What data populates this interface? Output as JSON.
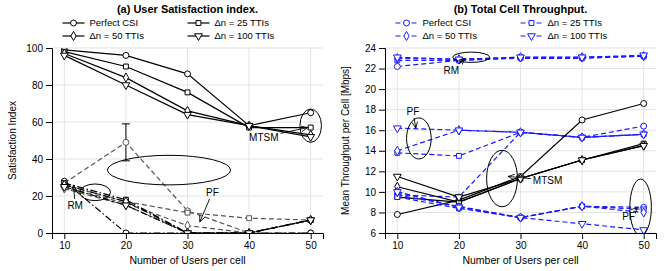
{
  "chart_data": [
    {
      "type": "line",
      "title": "(a) User Satisfaction index.",
      "x_label": "Number of Users per cell",
      "y_label": "Satisfaction Index",
      "x": [
        10,
        20,
        30,
        40,
        50
      ],
      "xlim": [
        8,
        52
      ],
      "xticks": [
        10,
        20,
        30,
        40,
        50
      ],
      "ylim": [
        0,
        100
      ],
      "yticks": [
        0,
        20,
        40,
        60,
        80,
        100
      ],
      "grid": true,
      "legend": "top",
      "series": [
        {
          "name": "Perfect CSI",
          "color": "#000000",
          "marker": "circle",
          "line_style": "solid",
          "values": [
            99,
            96,
            86,
            58,
            65
          ]
        },
        {
          "name": "Δn = 25 TTIs",
          "color": "#000000",
          "marker": "square",
          "line_style": "solid",
          "values": [
            98,
            90,
            76,
            57,
            57
          ]
        },
        {
          "name": "Δn = 50 TTIs",
          "color": "#000000",
          "marker": "diamond",
          "line_style": "solid",
          "values": [
            97,
            84,
            66,
            58,
            53
          ]
        },
        {
          "name": "Δn = 100 TTIs",
          "color": "#000000",
          "marker": "triangle-down",
          "line_style": "solid",
          "values": [
            96,
            80,
            64,
            58,
            52
          ]
        },
        {
          "name": "Perfect CSI",
          "color": "#555555",
          "marker": "circle",
          "line_style": "dashed",
          "values": [
            27,
            49,
            12,
            0,
            0
          ],
          "errors": [
            null,
            10,
            null,
            null,
            null
          ]
        },
        {
          "name": "Δn = 25 TTIs",
          "color": "#555555",
          "marker": "square",
          "line_style": "dashed",
          "values": [
            26,
            17,
            11,
            8,
            7
          ]
        },
        {
          "name": "Δn = 50 TTIs",
          "color": "#555555",
          "marker": "diamond",
          "line_style": "dashed",
          "values": [
            25,
            16,
            4,
            0,
            7
          ]
        },
        {
          "name": "Δn = 100 TTIs",
          "color": "#555555",
          "marker": "triangle-down",
          "line_style": "dashed",
          "values": [
            24,
            15,
            0,
            0,
            7
          ]
        },
        {
          "name": "Perfect CSI",
          "color": "#000000",
          "marker": "circle",
          "line_style": "dashdot",
          "values": [
            28,
            0,
            0,
            0,
            0
          ]
        },
        {
          "name": "Δn = 25 TTIs",
          "color": "#000000",
          "marker": "square",
          "line_style": "dashdot",
          "values": [
            27,
            18,
            0,
            0,
            7
          ]
        },
        {
          "name": "Δn = 50 TTIs",
          "color": "#000000",
          "marker": "diamond",
          "line_style": "dashdot",
          "values": [
            26,
            17,
            0,
            0,
            7
          ]
        },
        {
          "name": "Δn = 100 TTIs",
          "color": "#000000",
          "marker": "triangle-down",
          "line_style": "dashdot",
          "values": [
            25,
            15,
            0,
            0,
            7
          ]
        }
      ],
      "annotations": [
        {
          "text": "RM",
          "x": 11.5,
          "y": 26,
          "text_x": 10.5,
          "text_y": 13
        },
        {
          "text": "PF",
          "x": 32,
          "y": 6,
          "text_x": 33,
          "text_y": 20
        },
        {
          "text": "MTSM",
          "x": 49.5,
          "y": 57,
          "text_x": 40,
          "text_y": 50
        }
      ],
      "ellipses": [
        {
          "x": 27,
          "y": 34,
          "width": 20,
          "height": 16
        },
        {
          "x": 15,
          "y": 22,
          "width": 5,
          "height": 9
        },
        {
          "x": 50,
          "y": 58,
          "width": 3.5,
          "height": 18
        }
      ]
    },
    {
      "type": "line",
      "title": "(b) Total Cell Throughput.",
      "x_label": "Number of Users per cell",
      "y_label": "Mean Throughput per Cell [Mbps]",
      "x": [
        10,
        20,
        30,
        40,
        50
      ],
      "xlim": [
        8,
        52
      ],
      "xticks": [
        10,
        20,
        30,
        40,
        50
      ],
      "ylim": [
        6,
        24
      ],
      "yticks": [
        6,
        8,
        10,
        12,
        14,
        16,
        18,
        20,
        22,
        24
      ],
      "grid": true,
      "legend": "top",
      "series": [
        {
          "name": "Perfect CSI",
          "color": "#1a1aff",
          "marker": "circle",
          "line_style": "dashed",
          "values": [
            22.2,
            22.8,
            23.0,
            23.0,
            23.2
          ]
        },
        {
          "name": "Δn = 25 TTIs",
          "color": "#1a1aff",
          "marker": "square",
          "line_style": "dashed",
          "values": [
            22.8,
            22.8,
            23.1,
            23.1,
            23.2
          ]
        },
        {
          "name": "Δn = 50 TTIs",
          "color": "#1a1aff",
          "marker": "diamond",
          "line_style": "dashed",
          "values": [
            23.0,
            22.9,
            23.1,
            23.1,
            23.2
          ]
        },
        {
          "name": "Δn = 100 TTIs",
          "color": "#1a1aff",
          "marker": "triangle-down",
          "line_style": "dashed",
          "values": [
            23.1,
            22.9,
            23.1,
            23.1,
            23.3
          ]
        },
        {
          "name": "Perfect CSI",
          "color": "#1a1aff",
          "marker": "circle",
          "line_style": "dashed",
          "values": [
            9.7,
            9.5,
            15.8,
            15.3,
            16.4
          ]
        },
        {
          "name": "Δn = 25 TTIs",
          "color": "#1a1aff",
          "marker": "square",
          "line_style": "dashed",
          "values": [
            13.8,
            13.5,
            15.8,
            15.3,
            15.6
          ]
        },
        {
          "name": "Δn = 50 TTIs",
          "color": "#1a1aff",
          "marker": "diamond",
          "line_style": "dashed",
          "values": [
            14.0,
            16.0,
            15.8,
            15.3,
            15.6
          ]
        },
        {
          "name": "Δn = 100 TTIs",
          "color": "#1a1aff",
          "marker": "triangle-down",
          "line_style": "dashed",
          "values": [
            16.2,
            16.0,
            15.8,
            15.3,
            15.6
          ]
        },
        {
          "name": "Perfect CSI",
          "color": "#000000",
          "marker": "circle",
          "line_style": "solid",
          "values": [
            7.8,
            9.2,
            11.5,
            17.0,
            18.6
          ]
        },
        {
          "name": "Δn = 25 TTIs",
          "color": "#000000",
          "marker": "square",
          "line_style": "solid",
          "values": [
            9.5,
            9.0,
            11.3,
            13.1,
            14.7
          ]
        },
        {
          "name": "Δn = 50 TTIs",
          "color": "#000000",
          "marker": "diamond",
          "line_style": "solid",
          "values": [
            10.5,
            9.0,
            11.3,
            13.1,
            14.5
          ]
        },
        {
          "name": "Δn = 100 TTIs",
          "color": "#000000",
          "marker": "triangle-down",
          "line_style": "solid",
          "values": [
            11.5,
            9.5,
            11.3,
            13.1,
            14.5
          ]
        },
        {
          "name": "Perfect CSI",
          "color": "#1a1aff",
          "marker": "circle",
          "line_style": "dashed",
          "values": [
            9.7,
            8.6,
            7.5,
            8.6,
            8.5
          ]
        },
        {
          "name": "Δn = 25 TTIs",
          "color": "#1a1aff",
          "marker": "square",
          "line_style": "dashed",
          "values": [
            9.5,
            8.4,
            7.5,
            8.6,
            8.3
          ]
        },
        {
          "name": "Δn = 50 TTIs",
          "color": "#1a1aff",
          "marker": "diamond",
          "line_style": "dashed",
          "values": [
            10.0,
            8.5,
            7.5,
            8.6,
            8.0
          ]
        },
        {
          "name": "Δn = 100 TTIs",
          "color": "#1a1aff",
          "marker": "triangle-down",
          "line_style": "dashed",
          "values": [
            10.0,
            8.5,
            7.5,
            6.9,
            6.3
          ]
        }
      ],
      "annotations": [
        {
          "text": "RM",
          "x": 21,
          "y": 23.0,
          "text_x": 17.5,
          "text_y": 21.5
        },
        {
          "text": "PF",
          "x": 13,
          "y": 16.2,
          "text_x": 11.5,
          "text_y": 17.5
        },
        {
          "text": "MTSM",
          "x": 28,
          "y": 11.5,
          "text_x": 32,
          "text_y": 10.8
        },
        {
          "text": "PF",
          "x": 49,
          "y": 8.5,
          "text_x": 46.5,
          "text_y": 7.3
        }
      ],
      "ellipses": [
        {
          "x": 22,
          "y": 23.1,
          "width": 6,
          "height": 1.0
        },
        {
          "x": 13.5,
          "y": 15.2,
          "width": 4,
          "height": 4.0
        },
        {
          "x": 27,
          "y": 11.3,
          "width": 5,
          "height": 5.5
        },
        {
          "x": 49.5,
          "y": 8.5,
          "width": 3.5,
          "height": 5.5
        }
      ]
    }
  ]
}
